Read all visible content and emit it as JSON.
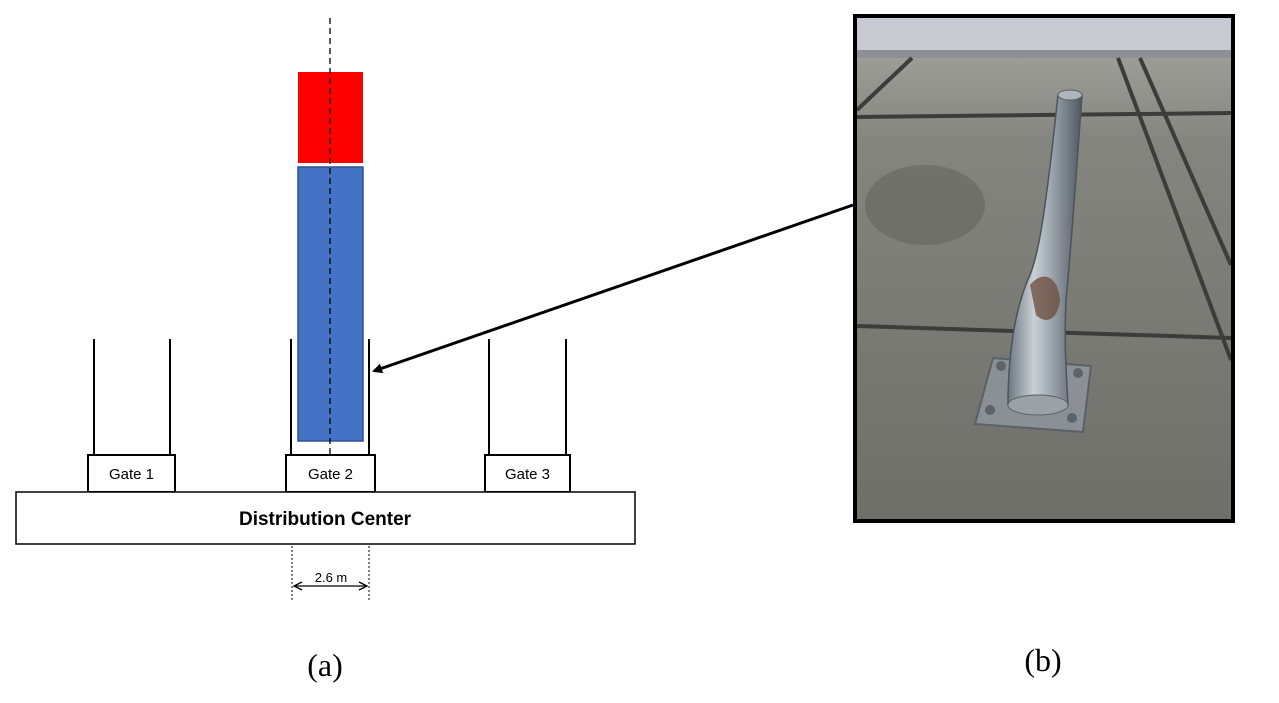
{
  "diagram": {
    "gates": [
      {
        "label": "Gate 1"
      },
      {
        "label": "Gate 2"
      },
      {
        "label": "Gate 3"
      }
    ],
    "building_label": "Distribution Center",
    "dimension_label": "2.6 m",
    "colors": {
      "trailer_cab": "#ff0000",
      "trailer_body": "#4472c4",
      "lines": "#000000"
    },
    "caption": "(a)"
  },
  "photo": {
    "description_icon": "damaged-bollard-photo",
    "caption": "(b)"
  }
}
